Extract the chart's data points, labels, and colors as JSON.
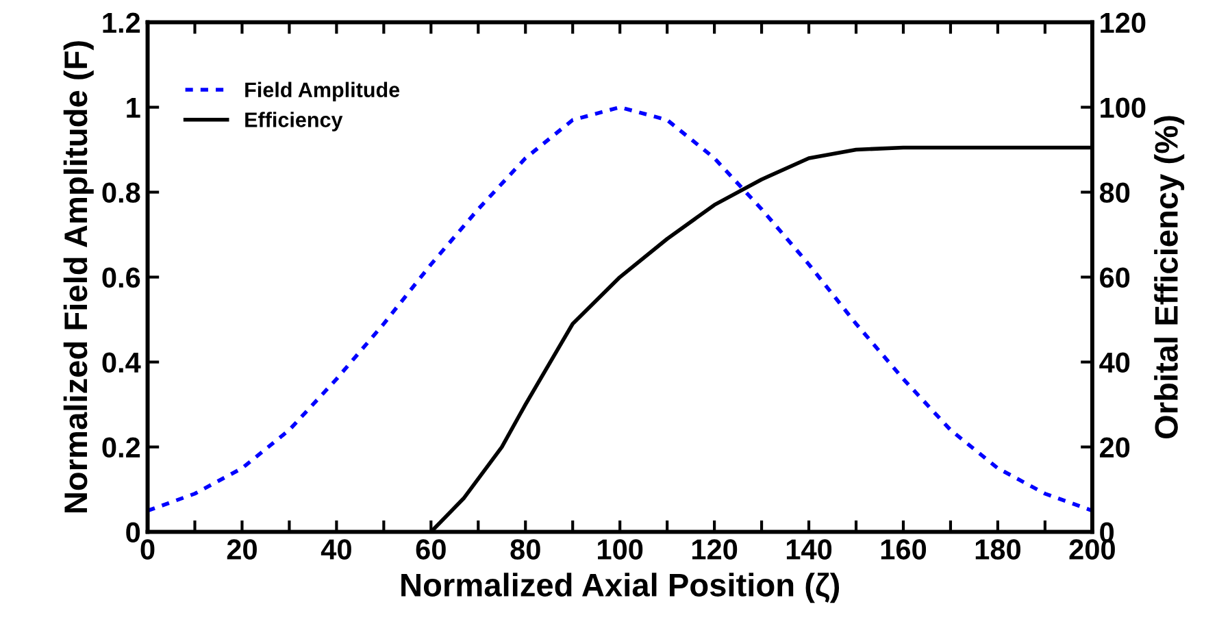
{
  "chart_data": {
    "type": "line",
    "xlabel": "Normalized Axial Position (ζ)",
    "ylabel": "Normalized Field Amplitude (F)",
    "y2label": "Orbital Efficiency (%)",
    "series": [
      {
        "name": "Field Amplitude",
        "color": "#0000ff",
        "line_style": "dotted",
        "x": [
          0,
          10,
          20,
          30,
          40,
          50,
          60,
          70,
          80,
          90,
          100,
          110,
          120,
          130,
          140,
          150,
          160,
          170,
          180,
          190,
          200
        ],
        "values": [
          0.05,
          0.09,
          0.15,
          0.24,
          0.36,
          0.49,
          0.63,
          0.76,
          0.88,
          0.97,
          1.0,
          0.97,
          0.88,
          0.76,
          0.63,
          0.49,
          0.36,
          0.24,
          0.15,
          0.09,
          0.05
        ]
      },
      {
        "name": "Efficiency",
        "color": "#000000",
        "line_style": "solid",
        "axis": "y2",
        "x": [
          60,
          67,
          75,
          80,
          90,
          100,
          110,
          120,
          130,
          140,
          150,
          160,
          170,
          200
        ],
        "values": [
          0,
          8,
          20,
          30,
          49,
          60,
          69,
          77,
          83,
          88,
          90,
          90.5,
          90.5,
          90.5
        ]
      }
    ],
    "xlim": [
      0,
      200
    ],
    "ylim": [
      0,
      1.2
    ],
    "y2lim": [
      0,
      120
    ],
    "xticks": [
      0,
      {
        "value": 10,
        "label": null
      },
      20,
      {
        "value": 30,
        "label": null
      },
      40,
      {
        "value": 50,
        "label": null
      },
      60,
      {
        "value": 70,
        "label": null
      },
      80,
      {
        "value": 90,
        "label": null
      },
      100,
      {
        "value": 110,
        "label": null
      },
      120,
      {
        "value": 130,
        "label": null
      },
      140,
      {
        "value": 150,
        "label": null
      },
      160,
      {
        "value": 170,
        "label": null
      },
      180,
      {
        "value": 190,
        "label": null
      },
      200
    ],
    "yticks": [
      0,
      0.2,
      0.4,
      0.6,
      0.8,
      1,
      1.2
    ],
    "y2ticks": [
      0,
      20,
      40,
      60,
      80,
      100,
      120
    ],
    "grid": false,
    "legend": "top left",
    "marker": "none"
  }
}
